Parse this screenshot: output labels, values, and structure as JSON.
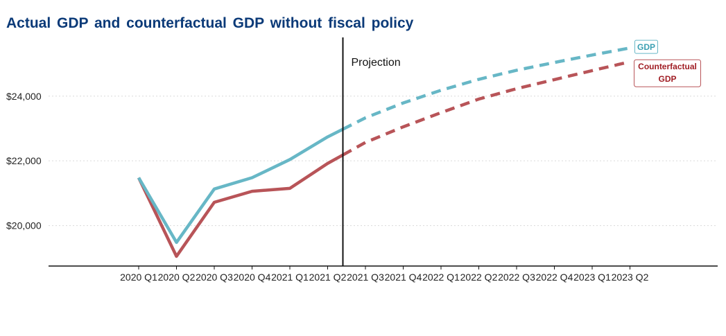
{
  "title": "Actual GDP and counterfactual GDP without fiscal policy",
  "projection_label": "Projection",
  "colors": {
    "gdp": "#67b7c6",
    "counterfactual": "#b85458",
    "counterfactual_label": "#a01d24",
    "title": "#0b3a78",
    "gdp_label_text": "#3a9fb2"
  },
  "chart_data": {
    "type": "line",
    "title": "Actual GDP and counterfactual GDP without fiscal policy",
    "xlabel": "",
    "ylabel": "",
    "categories": [
      "2020 Q1",
      "2020 Q2",
      "2020 Q3",
      "2020 Q4",
      "2021 Q1",
      "2021 Q2",
      "2021 Q3",
      "2021 Q4",
      "2022 Q1",
      "2022 Q2",
      "2022 Q3",
      "2022 Q4",
      "2023 Q1",
      "2023 Q2"
    ],
    "projection_start": "2021 Q2",
    "series": [
      {
        "name": "GDP",
        "label_lines": [
          "GDP"
        ],
        "values": [
          21480,
          19480,
          21130,
          21480,
          22040,
          22740,
          23330,
          23790,
          24180,
          24520,
          24800,
          25040,
          25270,
          25490
        ],
        "projected_from_index": 5,
        "style": "solid then dashed"
      },
      {
        "name": "Counterfactual GDP",
        "label_lines": [
          "Counterfactual",
          "GDP"
        ],
        "values": [
          21480,
          19050,
          20720,
          21060,
          21150,
          21920,
          22570,
          23050,
          23490,
          23910,
          24230,
          24510,
          24790,
          25060
        ],
        "projected_from_index": 5,
        "style": "solid then dashed"
      }
    ],
    "yticks": [
      20000,
      22000,
      24000
    ],
    "ytick_labels": [
      "$20,000",
      "$22,000",
      "$24,000"
    ],
    "ylim": [
      18750,
      25900
    ],
    "grid": "horizontal dotted",
    "legend": "direct labels at line ends"
  }
}
